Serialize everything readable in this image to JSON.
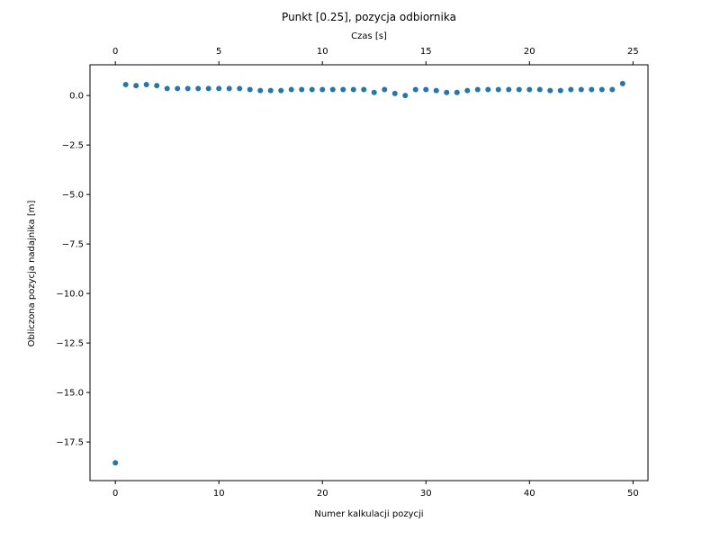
{
  "chart_data": {
    "type": "scatter",
    "title": "Punkt [0.25], pozycja odbiornika",
    "xlabel": "Numer kalkulacji pozycji",
    "ylabel": "Obliczona pozycja nadajnika [m]",
    "top_xlabel": "Czas [s]",
    "xlim": [
      -2.45,
      51.45
    ],
    "ylim": [
      -19.45,
      1.55
    ],
    "top_xlim": [
      -1.225,
      25.725
    ],
    "x_ticks": [
      0,
      10,
      20,
      30,
      40,
      50
    ],
    "x_tick_labels": [
      "0",
      "10",
      "20",
      "30",
      "40",
      "50"
    ],
    "y_ticks": [
      0.0,
      -2.5,
      -5.0,
      -7.5,
      -10.0,
      -12.5,
      -15.0,
      -17.5
    ],
    "y_tick_labels": [
      "0.0",
      "−2.5",
      "−5.0",
      "−7.5",
      "−10.0",
      "−12.5",
      "−15.0",
      "−17.5"
    ],
    "top_x_ticks": [
      0,
      5,
      10,
      15,
      20,
      25
    ],
    "top_x_tick_labels": [
      "0",
      "5",
      "10",
      "15",
      "20",
      "25"
    ],
    "grid": false,
    "color": "#1f77b4",
    "x": [
      0,
      1,
      2,
      3,
      4,
      5,
      6,
      7,
      8,
      9,
      10,
      11,
      12,
      13,
      14,
      15,
      16,
      17,
      18,
      19,
      20,
      21,
      22,
      23,
      24,
      25,
      26,
      27,
      28,
      29,
      30,
      31,
      32,
      33,
      34,
      35,
      36,
      37,
      38,
      39,
      40,
      41,
      42,
      43,
      44,
      45,
      46,
      47,
      48,
      49
    ],
    "y": [
      -18.55,
      0.55,
      0.5,
      0.55,
      0.5,
      0.35,
      0.35,
      0.35,
      0.35,
      0.35,
      0.35,
      0.35,
      0.35,
      0.3,
      0.25,
      0.25,
      0.25,
      0.3,
      0.3,
      0.3,
      0.3,
      0.3,
      0.3,
      0.3,
      0.3,
      0.15,
      0.3,
      0.1,
      0.0,
      0.3,
      0.3,
      0.25,
      0.15,
      0.15,
      0.25,
      0.3,
      0.3,
      0.3,
      0.3,
      0.3,
      0.3,
      0.3,
      0.25,
      0.25,
      0.3,
      0.3,
      0.3,
      0.3,
      0.3,
      0.6
    ]
  }
}
